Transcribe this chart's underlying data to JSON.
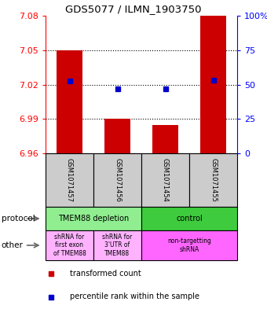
{
  "title": "GDS5077 / ILMN_1903750",
  "samples": [
    "GSM1071457",
    "GSM1071456",
    "GSM1071454",
    "GSM1071455"
  ],
  "red_values": [
    7.05,
    6.99,
    6.985,
    7.08
  ],
  "red_bottoms": [
    6.96,
    6.96,
    6.96,
    6.96
  ],
  "blue_y": [
    7.023,
    7.016,
    7.016,
    7.024
  ],
  "ylim": [
    6.96,
    7.08
  ],
  "yticks": [
    6.96,
    6.99,
    7.02,
    7.05,
    7.08
  ],
  "ytick_labels": [
    "6.96",
    "6.99",
    "7.02",
    "7.05",
    "7.08"
  ],
  "right_yticks": [
    0,
    25,
    50,
    75,
    100
  ],
  "right_ytick_labels": [
    "0",
    "25",
    "50",
    "75",
    "100%"
  ],
  "hlines": [
    6.99,
    7.02,
    7.05
  ],
  "protocol_groups": [
    {
      "label": "TMEM88 depletion",
      "cols": [
        0,
        1
      ],
      "color": "#90EE90"
    },
    {
      "label": "control",
      "cols": [
        2,
        3
      ],
      "color": "#3ECC3E"
    }
  ],
  "other_groups": [
    {
      "label": "shRNA for\nfirst exon\nof TMEM88",
      "cols": [
        0
      ],
      "color": "#FFB3FF"
    },
    {
      "label": "shRNA for\n3'UTR of\nTMEM88",
      "cols": [
        1
      ],
      "color": "#FFB3FF"
    },
    {
      "label": "non-targetting\nshRNA",
      "cols": [
        2,
        3
      ],
      "color": "#FF66FF"
    }
  ],
  "bar_color": "#CC0000",
  "dot_color": "#0000CC",
  "sample_box_color": "#CCCCCC",
  "legend_red_label": "transformed count",
  "legend_blue_label": "percentile rank within the sample"
}
